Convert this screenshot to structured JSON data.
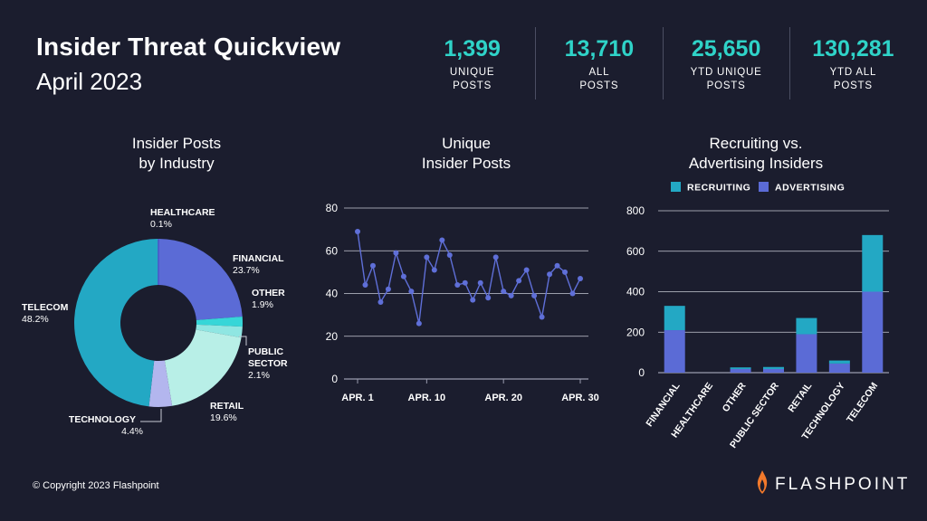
{
  "header": {
    "title": "Insider Threat Quickview",
    "subtitle": "April 2023"
  },
  "stats": [
    {
      "value": "1,399",
      "label_1": "UNIQUE",
      "label_2": "POSTS"
    },
    {
      "value": "13,710",
      "label_1": "ALL",
      "label_2": "POSTS"
    },
    {
      "value": "25,650",
      "label_1": "YTD UNIQUE",
      "label_2": "POSTS"
    },
    {
      "value": "130,281",
      "label_1": "YTD ALL",
      "label_2": "POSTS"
    }
  ],
  "colors": {
    "background": "#1b1d2e",
    "accent": "#2fd3c8",
    "recruiting": "#23a8c4",
    "advertising": "#5b6bd6",
    "line": "#5f6fd8"
  },
  "footer": {
    "copyright": "© Copyright 2023 Flashpoint",
    "brand": "FLASHPOINT",
    "brand_icon": "flame-icon"
  },
  "chart_data": [
    {
      "type": "pie",
      "title_1": "Insider Posts",
      "title_2": "by Industry",
      "slices": [
        {
          "label": "HEALTHCARE",
          "value": 0.1,
          "value_label": "0.1%",
          "color": "#4a56c8"
        },
        {
          "label": "FINANCIAL",
          "value": 23.7,
          "value_label": "23.7%",
          "color": "#5b6bd6"
        },
        {
          "label": "OTHER",
          "value": 1.9,
          "value_label": "1.9%",
          "color": "#36d6d8"
        },
        {
          "label": "PUBLIC SECTOR",
          "label_1": "PUBLIC",
          "label_2": "SECTOR",
          "value": 2.1,
          "value_label": "2.1%",
          "color": "#8fe6e2"
        },
        {
          "label": "RETAIL",
          "value": 19.6,
          "value_label": "19.6%",
          "color": "#b8efe7"
        },
        {
          "label": "TECHNOLOGY",
          "value": 4.4,
          "value_label": "4.4%",
          "color": "#b3b6ee"
        },
        {
          "label": "TELECOM",
          "value": 48.2,
          "value_label": "48.2%",
          "color": "#23a8c4"
        }
      ]
    },
    {
      "type": "line",
      "title_1": "Unique",
      "title_2": "Insider Posts",
      "x": [
        1,
        2,
        3,
        4,
        5,
        6,
        7,
        8,
        9,
        10,
        11,
        12,
        13,
        14,
        15,
        16,
        17,
        18,
        19,
        20,
        21,
        22,
        23,
        24,
        25,
        26,
        27,
        28,
        29,
        30
      ],
      "values": [
        69,
        44,
        53,
        36,
        42,
        59,
        48,
        41,
        26,
        57,
        51,
        65,
        58,
        44,
        45,
        37,
        45,
        38,
        57,
        41,
        39,
        46,
        51,
        39,
        29,
        49,
        53,
        50,
        40,
        47
      ],
      "ylim": [
        0,
        80
      ],
      "yticks": [
        0,
        20,
        40,
        60,
        80
      ],
      "xticks": [
        {
          "x": 1,
          "label": "APR. 1"
        },
        {
          "x": 10,
          "label": "APR. 10"
        },
        {
          "x": 20,
          "label": "APR. 20"
        },
        {
          "x": 30,
          "label": "APR. 30"
        }
      ],
      "grid": true
    },
    {
      "type": "bar",
      "stacked": true,
      "title_1": "Recruiting vs.",
      "title_2": "Advertising Insiders",
      "categories": [
        "FINANCIAL",
        "HEALTHCARE",
        "OTHER",
        "PUBLIC SECTOR",
        "RETAIL",
        "TECHNOLOGY",
        "TELECOM"
      ],
      "series": [
        {
          "name": "ADVERTISING",
          "values": [
            210,
            0,
            18,
            18,
            190,
            45,
            400
          ],
          "color": "#5b6bd6"
        },
        {
          "name": "RECRUITING",
          "values": [
            120,
            0,
            8,
            10,
            80,
            15,
            280
          ],
          "color": "#23a8c4"
        }
      ],
      "ylim": [
        0,
        800
      ],
      "yticks": [
        0,
        200,
        400,
        600,
        800
      ],
      "legend": [
        {
          "name": "RECRUITING",
          "color": "#23a8c4"
        },
        {
          "name": "ADVERTISING",
          "color": "#5b6bd6"
        }
      ],
      "legend_position": "top",
      "grid": true
    }
  ]
}
